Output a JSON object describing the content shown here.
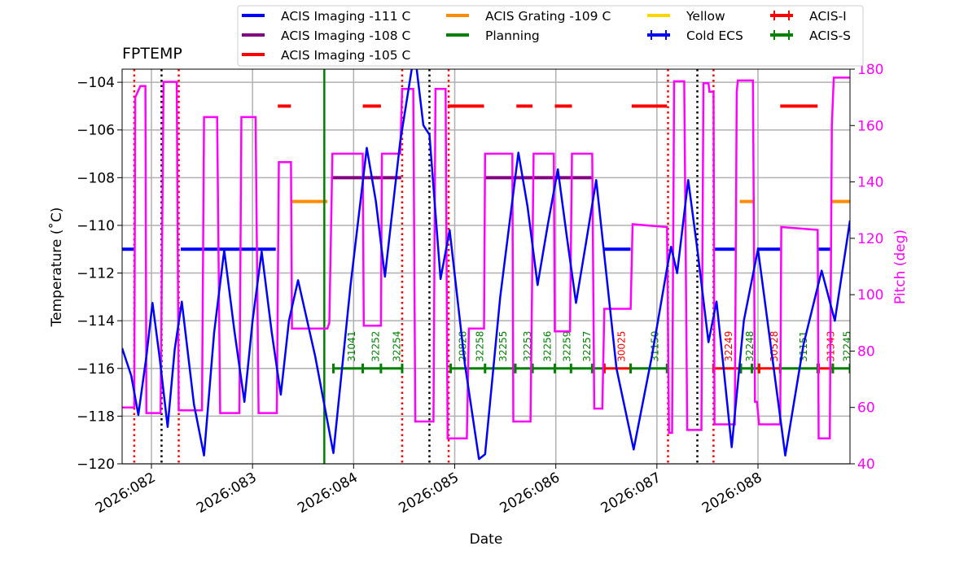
{
  "chart_data": {
    "type": "line",
    "title": "FPTEMP",
    "xlabel": "Date",
    "ylabel": "Temperature ($^\\circ$C)",
    "ylabel_display": "Temperature (˚C)",
    "y2label": "Pitch (deg)",
    "xlim": [
      81.71,
      88.91
    ],
    "ylim": [
      -120,
      -103.45
    ],
    "y2lim": [
      40,
      180
    ],
    "grid": true,
    "legend_placement": "top-center",
    "xticks": [
      82,
      83,
      84,
      85,
      86,
      87,
      88
    ],
    "xtick_labels": [
      "2026:082",
      "2026:083",
      "2026:084",
      "2026:085",
      "2026:086",
      "2026:087",
      "2026:088"
    ],
    "yticks": [
      -120,
      -118,
      -116,
      -114,
      -112,
      -110,
      -108,
      -106,
      -104
    ],
    "ytick_labels": [
      "−120",
      "−118",
      "−116",
      "−114",
      "−112",
      "−110",
      "−108",
      "−106",
      "−104"
    ],
    "y2ticks": [
      40,
      60,
      80,
      100,
      120,
      140,
      160,
      180
    ],
    "y2tick_labels": [
      "40",
      "60",
      "80",
      "100",
      "120",
      "140",
      "160",
      "180"
    ],
    "colors": {
      "temperature": "#0000ff",
      "pitch": "#ff00ff",
      "grid": "#b0b0b0",
      "pitch_axis": "#ff00ff"
    },
    "temperature_series": {
      "x": [
        81.71,
        81.8,
        81.87,
        81.95,
        82.01,
        82.08,
        82.16,
        82.23,
        82.3,
        82.42,
        82.52,
        82.62,
        82.72,
        82.82,
        82.92,
        83.0,
        83.09,
        83.19,
        83.28,
        83.36,
        83.45,
        83.62,
        83.8,
        83.97,
        84.13,
        84.22,
        84.31,
        84.46,
        84.58,
        84.62,
        84.69,
        84.75,
        84.86,
        84.95,
        85.1,
        85.24,
        85.3,
        85.45,
        85.63,
        85.72,
        85.82,
        85.92,
        86.02,
        86.11,
        86.2,
        86.3,
        86.4,
        86.6,
        86.77,
        86.95,
        87.1,
        87.14,
        87.2,
        87.31,
        87.4,
        87.51,
        87.59,
        87.66,
        87.74,
        87.86,
        88.0,
        88.14,
        88.27,
        88.45,
        88.63,
        88.76,
        88.91
      ],
      "y": [
        -115.15,
        -116.3,
        -117.95,
        -115.5,
        -113.25,
        -115.5,
        -118.45,
        -115.2,
        -113.2,
        -117.5,
        -119.65,
        -114.5,
        -111.05,
        -114.4,
        -117.4,
        -114.0,
        -111.1,
        -114.5,
        -117.1,
        -114.0,
        -112.3,
        -115.5,
        -119.55,
        -112.5,
        -106.75,
        -109.0,
        -112.15,
        -106.5,
        -103.3,
        -103.3,
        -105.8,
        -106.2,
        -112.25,
        -110.2,
        -115.8,
        -119.8,
        -119.6,
        -113.0,
        -106.95,
        -109.2,
        -112.5,
        -110.0,
        -107.65,
        -110.5,
        -113.25,
        -110.7,
        -108.1,
        -116.0,
        -119.4,
        -115.5,
        -111.8,
        -110.9,
        -112.0,
        -108.1,
        -111.0,
        -114.9,
        -113.2,
        -116.0,
        -119.3,
        -114.0,
        -111.0,
        -115.5,
        -119.65,
        -115.0,
        -111.9,
        -114.0,
        -109.8
      ]
    },
    "pitch_series": {
      "x": [
        81.71,
        81.83,
        81.84,
        81.89,
        81.94,
        81.95,
        82.09,
        82.12,
        82.25,
        82.27,
        82.5,
        82.52,
        82.65,
        82.68,
        82.87,
        82.89,
        83.03,
        83.06,
        83.24,
        83.26,
        83.38,
        83.39,
        83.74,
        83.76,
        83.79,
        84.09,
        84.1,
        84.27,
        84.28,
        84.46,
        84.48,
        84.59,
        84.61,
        84.79,
        84.81,
        84.91,
        84.93,
        85.12,
        85.14,
        85.29,
        85.3,
        85.57,
        85.58,
        85.75,
        85.78,
        85.98,
        85.99,
        86.14,
        86.16,
        86.36,
        86.38,
        86.46,
        86.48,
        86.74,
        86.76,
        87.1,
        87.12,
        87.15,
        87.17,
        87.27,
        87.3,
        87.44,
        87.46,
        87.51,
        87.52,
        87.56,
        87.57,
        87.77,
        87.79,
        87.8,
        87.95,
        87.97,
        87.99,
        88.01,
        88.22,
        88.23,
        88.59,
        88.6,
        88.71,
        88.73,
        88.75,
        88.91
      ],
      "y": [
        60,
        60,
        170,
        174,
        174,
        58,
        58,
        175.5,
        175.5,
        59,
        59,
        163,
        163,
        58,
        58,
        163,
        163,
        58,
        58,
        147,
        147,
        88,
        88,
        90,
        150,
        150,
        89,
        89,
        150,
        150,
        173,
        173,
        55,
        55,
        173,
        173,
        49,
        49,
        88,
        88,
        150,
        150,
        55,
        55,
        150,
        150,
        87,
        87,
        150,
        150,
        59.6,
        59.6,
        95,
        95,
        125,
        124,
        51,
        51,
        175.7,
        175.7,
        52,
        52,
        175,
        175,
        172,
        172,
        54,
        54,
        172,
        176,
        176,
        62,
        62,
        54,
        54,
        124,
        123,
        49,
        49,
        160,
        177,
        177
      ]
    },
    "mode_segments": [
      {
        "name": "ACIS Imaging -111 C",
        "color": "#0000ff",
        "level": -111,
        "spans": [
          [
            81.71,
            81.83
          ],
          [
            82.29,
            83.23
          ],
          [
            86.48,
            86.74
          ],
          [
            87.56,
            87.77
          ],
          [
            87.99,
            88.22
          ],
          [
            88.59,
            88.73
          ]
        ]
      },
      {
        "name": "ACIS Imaging -108 C",
        "color": "#800080",
        "level": -108,
        "spans": [
          [
            83.79,
            84.47
          ],
          [
            85.3,
            86.36
          ]
        ]
      },
      {
        "name": "ACIS Imaging -105 C",
        "color": "#ff0000",
        "level": -105,
        "spans": [
          [
            83.25,
            83.38
          ],
          [
            84.09,
            84.27
          ],
          [
            84.93,
            85.29
          ],
          [
            85.61,
            85.77
          ],
          [
            85.99,
            86.16
          ],
          [
            86.75,
            87.1
          ],
          [
            88.22,
            88.59
          ]
        ]
      },
      {
        "name": "ACIS Grating -109 C",
        "color": "#ff8c00",
        "level": -109,
        "spans": [
          [
            83.38,
            83.74
          ],
          [
            87.82,
            87.95
          ],
          [
            88.73,
            88.91
          ]
        ]
      },
      {
        "name": "Planning",
        "color": "#008000",
        "level": null,
        "spans": []
      },
      {
        "name": "Yellow",
        "color": "#ffd700",
        "level": null,
        "spans": []
      }
    ],
    "vlines": [
      {
        "kind": "planning",
        "color": "#008000",
        "style": "solid",
        "x": [
          83.71
        ]
      },
      {
        "kind": "red-dotted",
        "color": "#ff0000",
        "style": "dotted",
        "x": [
          81.83,
          82.27,
          84.48,
          84.94,
          87.11,
          87.56
        ]
      },
      {
        "kind": "black-dotted",
        "color": "#000000",
        "style": "dotted",
        "x": [
          82.1,
          84.75,
          87.4
        ]
      }
    ],
    "obsid_bars": {
      "level": -116,
      "segments": [
        {
          "inst": "ACIS-S",
          "color": "#008000",
          "ticks": [
            83.8,
            84.09,
            84.27,
            84.48
          ]
        },
        {
          "inst": "ACIS-S",
          "color": "#008000",
          "ticks": [
            84.96,
            85.3,
            85.6,
            85.77,
            85.99,
            86.15,
            86.36,
            86.48
          ]
        },
        {
          "inst": "ACIS-I",
          "color": "#ff0000",
          "ticks": [
            86.48,
            86.74
          ]
        },
        {
          "inst": "ACIS-S",
          "color": "#008000",
          "ticks": [
            86.74,
            87.1
          ]
        },
        {
          "inst": "ACIS-I",
          "color": "#ff0000",
          "ticks": [
            87.56,
            87.83
          ]
        },
        {
          "inst": "ACIS-S",
          "color": "#008000",
          "ticks": [
            87.83,
            87.94,
            88.01
          ]
        },
        {
          "inst": "ACIS-I",
          "color": "#ff0000",
          "ticks": [
            88.01,
            88.22
          ]
        },
        {
          "inst": "ACIS-S",
          "color": "#008000",
          "ticks": [
            88.22,
            88.59
          ]
        },
        {
          "inst": "ACIS-I",
          "color": "#ff0000",
          "ticks": [
            88.6,
            88.74
          ]
        },
        {
          "inst": "ACIS-S",
          "color": "#008000",
          "ticks": [
            88.74,
            88.91
          ]
        }
      ]
    },
    "obsids": [
      {
        "label": "31041",
        "x": 83.98,
        "color": "#008000"
      },
      {
        "label": "32252",
        "x": 84.22,
        "color": "#008000"
      },
      {
        "label": "32254",
        "x": 84.43,
        "color": "#008000"
      },
      {
        "label": "29828",
        "x": 85.08,
        "color": "#008000"
      },
      {
        "label": "32258",
        "x": 85.25,
        "color": "#008000"
      },
      {
        "label": "32255",
        "x": 85.48,
        "color": "#008000"
      },
      {
        "label": "32253",
        "x": 85.72,
        "color": "#008000"
      },
      {
        "label": "32256",
        "x": 85.92,
        "color": "#008000"
      },
      {
        "label": "32259",
        "x": 86.11,
        "color": "#008000"
      },
      {
        "label": "32257",
        "x": 86.31,
        "color": "#008000"
      },
      {
        "label": "30025",
        "x": 86.65,
        "color": "#ff0000"
      },
      {
        "label": "31150",
        "x": 86.98,
        "color": "#008000"
      },
      {
        "label": "32249",
        "x": 87.71,
        "color": "#ff0000"
      },
      {
        "label": "32248",
        "x": 87.92,
        "color": "#008000"
      },
      {
        "label": "30528",
        "x": 88.16,
        "color": "#ff0000"
      },
      {
        "label": "31151",
        "x": 88.45,
        "color": "#008000"
      },
      {
        "label": "31343",
        "x": 88.72,
        "color": "#ff0000"
      },
      {
        "label": "32245",
        "x": 88.88,
        "color": "#008000"
      }
    ],
    "legend": [
      {
        "label": "ACIS Imaging -111 C",
        "color": "#0000ff",
        "marker": "line"
      },
      {
        "label": "ACIS Imaging -108 C",
        "color": "#800080",
        "marker": "line"
      },
      {
        "label": "ACIS Imaging -105 C",
        "color": "#ff0000",
        "marker": "line"
      },
      {
        "label": "ACIS Grating -109 C",
        "color": "#ff8c00",
        "marker": "line"
      },
      {
        "label": "Planning",
        "color": "#008000",
        "marker": "line"
      },
      {
        "label": "Yellow",
        "color": "#ffd700",
        "marker": "line"
      },
      {
        "label": "Cold ECS",
        "color": "#0000ff",
        "marker": "errorbar"
      },
      {
        "label": "ACIS-I",
        "color": "#ff0000",
        "marker": "errorbar"
      },
      {
        "label": "ACIS-S",
        "color": "#008000",
        "marker": "errorbar"
      }
    ]
  }
}
